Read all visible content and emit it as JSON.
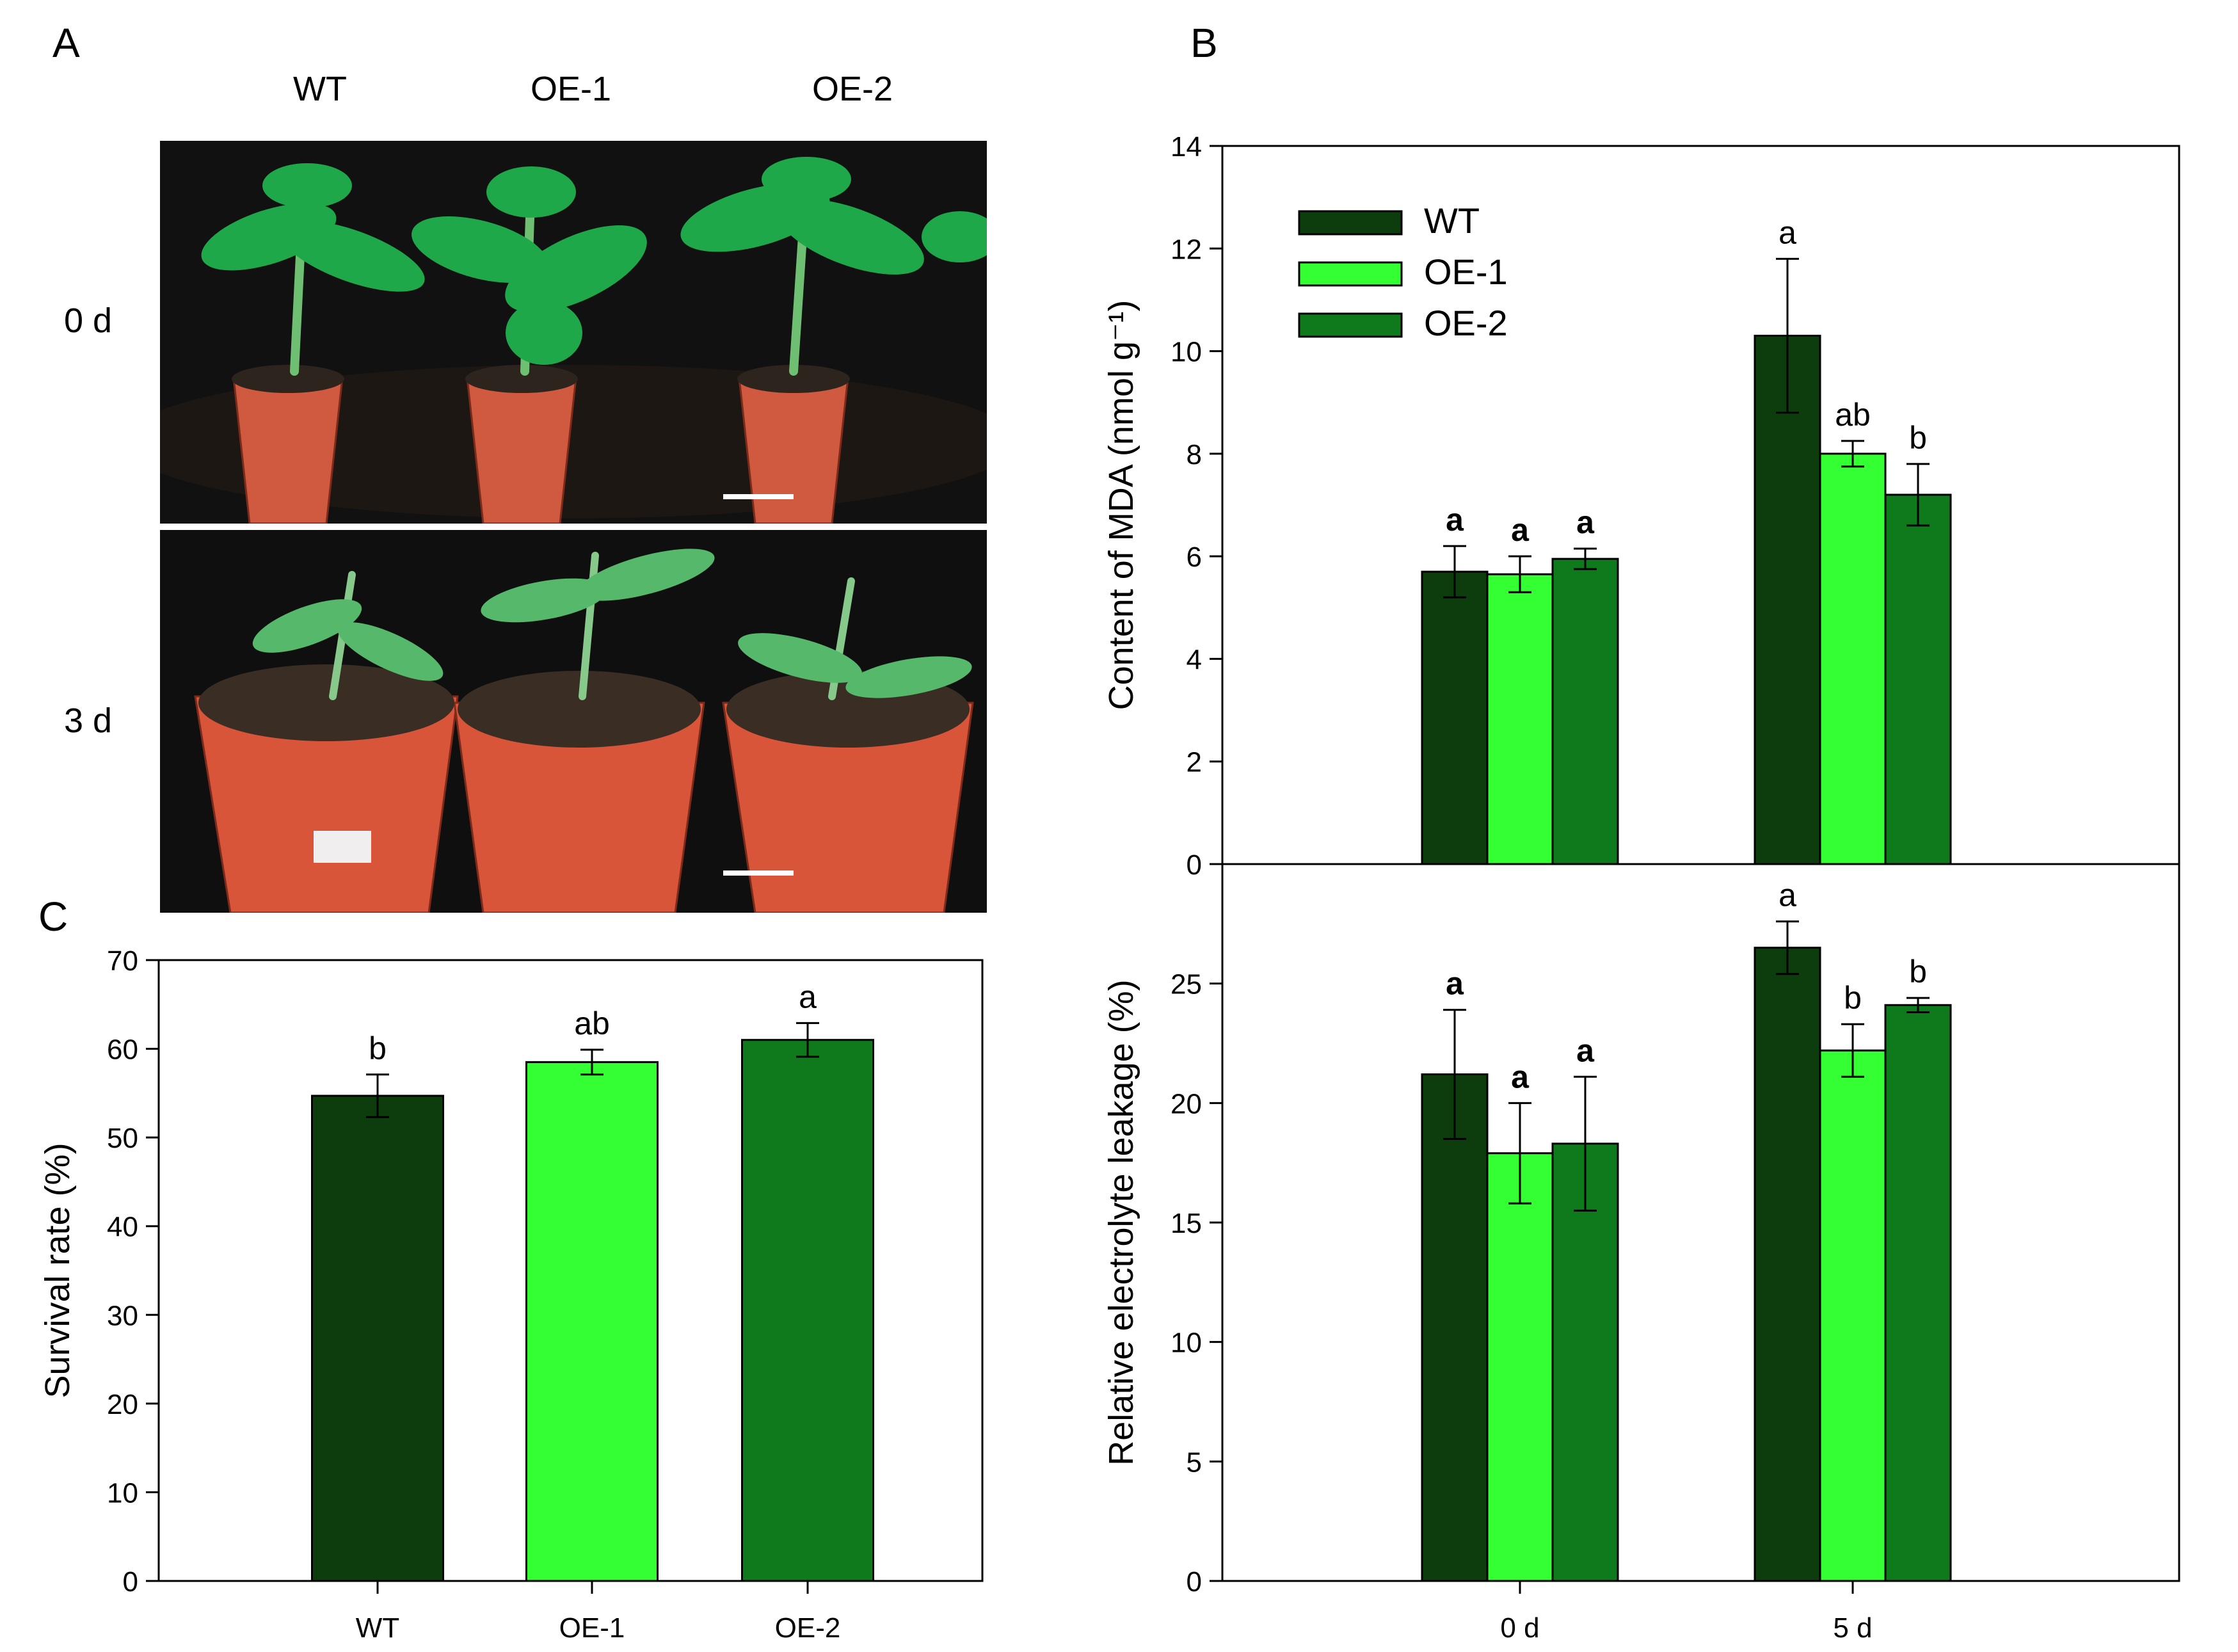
{
  "panel_a": {
    "letter": "A",
    "columns": [
      "WT",
      "OE-1",
      "OE-2"
    ],
    "rows": [
      "0 d",
      "3 d"
    ]
  },
  "panel_b": {
    "letter": "B"
  },
  "panel_c": {
    "letter": "C"
  },
  "colors": {
    "WT": "#0d3d0d",
    "OE-1": "#33ff33",
    "OE-2": "#0e7a1c"
  },
  "chart_data": [
    {
      "id": "mda",
      "type": "bar",
      "title": "",
      "xlabel": "",
      "ylabel": "Content of MDA (nmol g⁻¹)",
      "ylim": [
        0,
        14
      ],
      "yticks": [
        0,
        2,
        4,
        6,
        8,
        10,
        12,
        14
      ],
      "categories": [
        "0 d",
        "5 d"
      ],
      "series": [
        {
          "name": "WT",
          "values": [
            5.7,
            10.3
          ],
          "errors": [
            0.5,
            1.5
          ],
          "labels": [
            "a",
            "a"
          ]
        },
        {
          "name": "OE-1",
          "values": [
            5.65,
            8.0
          ],
          "errors": [
            0.35,
            0.25
          ],
          "labels": [
            "a",
            "ab"
          ]
        },
        {
          "name": "OE-2",
          "values": [
            5.95,
            7.2
          ],
          "errors": [
            0.2,
            0.6
          ],
          "labels": [
            "a",
            "b"
          ]
        }
      ],
      "legend": "top-left",
      "grid": false
    },
    {
      "id": "leakage",
      "type": "bar",
      "title": "",
      "xlabel": "",
      "ylabel": "Relative electrolyte leakage (%)",
      "ylim": [
        0,
        30
      ],
      "yticks": [
        0,
        5,
        10,
        15,
        20,
        25
      ],
      "categories": [
        "0 d",
        "5 d"
      ],
      "series": [
        {
          "name": "WT",
          "values": [
            21.2,
            26.5
          ],
          "errors": [
            2.7,
            1.1
          ],
          "labels": [
            "a",
            "a"
          ]
        },
        {
          "name": "OE-1",
          "values": [
            17.9,
            22.2
          ],
          "errors": [
            2.1,
            1.1
          ],
          "labels": [
            "a",
            "b"
          ]
        },
        {
          "name": "OE-2",
          "values": [
            18.3,
            24.1
          ],
          "errors": [
            2.8,
            0.3
          ],
          "labels": [
            "a",
            "b"
          ]
        }
      ],
      "grid": false
    },
    {
      "id": "survival",
      "type": "bar",
      "title": "",
      "xlabel": "",
      "ylabel": "Survival rate (%)",
      "ylim": [
        0,
        70
      ],
      "yticks": [
        0,
        10,
        20,
        30,
        40,
        50,
        60,
        70
      ],
      "categories": [
        "WT",
        "OE-1",
        "OE-2"
      ],
      "values": [
        54.7,
        58.5,
        61.0
      ],
      "errors": [
        2.4,
        1.4,
        1.9
      ],
      "labels": [
        "b",
        "ab",
        "a"
      ],
      "grid": false
    }
  ]
}
